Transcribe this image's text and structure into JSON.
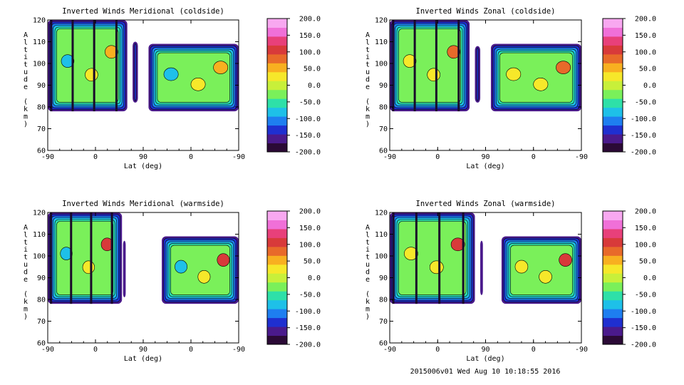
{
  "footer": "2015006v01 Wed Aug 10 10:18:55 2016",
  "colorbar": {
    "ticks": [
      "200.0",
      "150.0",
      "100.0",
      "50.0",
      "0.0",
      "-50.0",
      "-100.0",
      "-150.0",
      "-200.0"
    ],
    "colors": [
      "#2b0a36",
      "#4a1a8c",
      "#1f2fd0",
      "#1e7ef0",
      "#1ec0e8",
      "#2ee0a8",
      "#7af05a",
      "#c8f03a",
      "#f6e82a",
      "#f8b020",
      "#e86a2a",
      "#d83a3a",
      "#e8407a",
      "#f070d8",
      "#f8a8f0"
    ]
  },
  "chart_data": [
    {
      "type": "contour",
      "title": "Inverted Winds Meridional (coldside)",
      "xlabel": "Lat (deg)",
      "ylabel": "Altitude (km)",
      "xticks": [
        "-90",
        "0",
        "90",
        "0",
        "-90"
      ],
      "yticks": [
        "60",
        "70",
        "80",
        "90",
        "100",
        "110",
        "120"
      ],
      "ylim": [
        60,
        120
      ],
      "zlim": [
        -200,
        200
      ],
      "data_regions": [
        {
          "lat_from": -90,
          "lat_to": 60,
          "alt_bottom": 78,
          "alt_top": 120
        },
        {
          "lat_from": 70,
          "lat_to": 80,
          "alt_bottom": 82,
          "alt_top": 110
        },
        {
          "lat_from": 100,
          "lat_to": 270,
          "alt_bottom": 78,
          "alt_top": 109
        }
      ]
    },
    {
      "type": "contour",
      "title": "Inverted Winds Zonal (coldside)",
      "xlabel": "Lat (deg)",
      "ylabel": "Altitude (km)",
      "xticks": [
        "-90",
        "0",
        "90",
        "0",
        "-90"
      ],
      "yticks": [
        "60",
        "70",
        "80",
        "90",
        "100",
        "110",
        "120"
      ],
      "ylim": [
        60,
        120
      ],
      "zlim": [
        -200,
        200
      ],
      "data_regions": [
        {
          "lat_from": -90,
          "lat_to": 60,
          "alt_bottom": 78,
          "alt_top": 120
        },
        {
          "lat_from": 70,
          "lat_to": 80,
          "alt_bottom": 82,
          "alt_top": 108
        },
        {
          "lat_from": 100,
          "lat_to": 270,
          "alt_bottom": 78,
          "alt_top": 109
        }
      ]
    },
    {
      "type": "contour",
      "title": "Inverted Winds Meridional (warmside)",
      "xlabel": "Lat (deg)",
      "ylabel": "Altitude (km)",
      "xticks": [
        "-90",
        "0",
        "90",
        "0",
        "-90"
      ],
      "yticks": [
        "60",
        "70",
        "80",
        "90",
        "100",
        "110",
        "120"
      ],
      "ylim": [
        60,
        120
      ],
      "zlim": [
        -200,
        200
      ],
      "data_regions": [
        {
          "lat_from": -90,
          "lat_to": 50,
          "alt_bottom": 78,
          "alt_top": 120
        },
        {
          "lat_from": 52,
          "lat_to": 57,
          "alt_bottom": 81,
          "alt_top": 107
        },
        {
          "lat_from": 125,
          "lat_to": 270,
          "alt_bottom": 78,
          "alt_top": 109
        }
      ]
    },
    {
      "type": "contour",
      "title": "Inverted Winds Zonal (warmside)",
      "xlabel": "Lat (deg)",
      "ylabel": "Altitude (km)",
      "xticks": [
        "-90",
        "0",
        "90",
        "0",
        "-90"
      ],
      "yticks": [
        "60",
        "70",
        "80",
        "90",
        "100",
        "110",
        "120"
      ],
      "ylim": [
        60,
        120
      ],
      "zlim": [
        -200,
        200
      ],
      "data_regions": [
        {
          "lat_from": -90,
          "lat_to": 70,
          "alt_bottom": 78,
          "alt_top": 120
        },
        {
          "lat_from": 80,
          "lat_to": 85,
          "alt_bottom": 82,
          "alt_top": 107
        },
        {
          "lat_from": 120,
          "lat_to": 270,
          "alt_bottom": 78,
          "alt_top": 109
        }
      ]
    }
  ]
}
